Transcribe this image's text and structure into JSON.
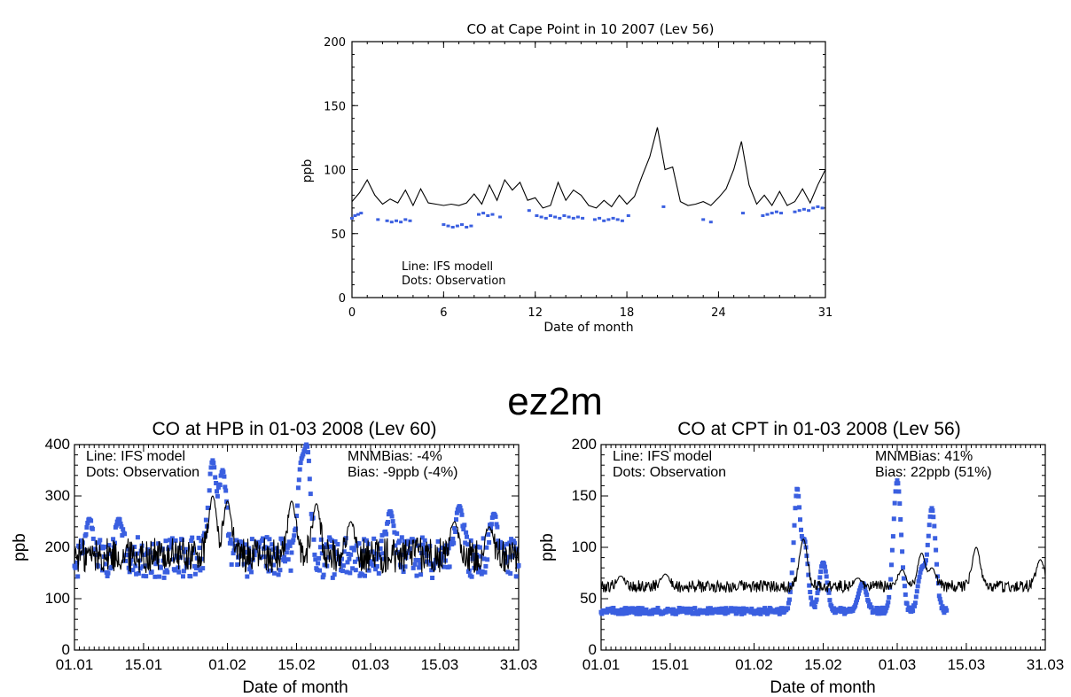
{
  "banner": "ez2m",
  "colors": {
    "model": "#000000",
    "observation": "#3a5fe0",
    "background": "#ffffff"
  },
  "chart_data": [
    {
      "type": "line",
      "title": "CO at Cape Point in 10 2007 (Lev 56)",
      "xlabel": "Date of month",
      "ylabel": "ppb",
      "xlim": [
        0,
        31
      ],
      "ylim": [
        0,
        200
      ],
      "x_ticks": [
        0,
        6,
        12,
        18,
        24,
        31
      ],
      "x_tick_labels": [
        "0",
        "6",
        "12",
        "18",
        "24",
        "31"
      ],
      "y_ticks": [
        0,
        50,
        100,
        150,
        200
      ],
      "y_tick_labels": [
        "0",
        "50",
        "100",
        "150",
        "200"
      ],
      "annotations": [
        "Line: IFS modell",
        "Dots: Observation"
      ],
      "series": [
        {
          "style": "line",
          "x": [
            0,
            0.5,
            1,
            1.5,
            2,
            2.5,
            3,
            3.5,
            4,
            4.5,
            5,
            5.5,
            6,
            6.5,
            7,
            7.5,
            8,
            8.5,
            9,
            9.5,
            10,
            10.5,
            11,
            11.5,
            12,
            12.5,
            13,
            13.5,
            14,
            14.5,
            15,
            15.5,
            16,
            16.5,
            17,
            17.5,
            18,
            18.5,
            19,
            19.5,
            20,
            20.5,
            21,
            21.5,
            22,
            22.5,
            23,
            23.5,
            24,
            24.5,
            25,
            25.5,
            26,
            26.5,
            27,
            27.5,
            28,
            28.5,
            29,
            29.5,
            30,
            30.5,
            31
          ],
          "y": [
            75,
            82,
            92,
            80,
            73,
            77,
            74,
            84,
            72,
            85,
            74,
            73,
            72,
            73,
            72,
            74,
            81,
            73,
            88,
            76,
            92,
            84,
            90,
            76,
            78,
            70,
            72,
            90,
            76,
            84,
            80,
            72,
            70,
            76,
            71,
            80,
            73,
            79,
            95,
            110,
            133,
            100,
            102,
            75,
            72,
            73,
            75,
            72,
            78,
            85,
            100,
            122,
            88,
            73,
            80,
            72,
            83,
            72,
            75,
            85,
            74,
            88,
            100
          ]
        },
        {
          "style": "dots",
          "segments": [
            {
              "x": [
                0.0,
                0.2,
                0.4,
                0.6
              ],
              "y": [
                62,
                64,
                65,
                66
              ]
            },
            {
              "x": [
                1.7
              ],
              "y": [
                61
              ]
            },
            {
              "x": [
                2.3,
                2.6,
                2.9,
                3.2,
                3.5,
                3.8
              ],
              "y": [
                60,
                59,
                60,
                59,
                61,
                60
              ]
            },
            {
              "x": [
                6.0,
                6.3,
                6.6,
                6.9,
                7.2,
                7.5,
                7.8
              ],
              "y": [
                57,
                56,
                55,
                56,
                57,
                55,
                56
              ]
            },
            {
              "x": [
                8.3,
                8.6,
                8.9,
                9.2
              ],
              "y": [
                65,
                66,
                64,
                65
              ]
            },
            {
              "x": [
                9.7
              ],
              "y": [
                63
              ]
            },
            {
              "x": [
                11.6
              ],
              "y": [
                68
              ]
            },
            {
              "x": [
                12.1,
                12.4,
                12.7,
                13.0,
                13.3,
                13.6,
                13.9,
                14.2,
                14.5,
                14.8,
                15.1
              ],
              "y": [
                64,
                63,
                62,
                64,
                63,
                62,
                64,
                63,
                62,
                63,
                62
              ]
            },
            {
              "x": [
                15.9,
                16.2,
                16.5,
                16.8,
                17.1,
                17.4,
                17.7
              ],
              "y": [
                61,
                62,
                60,
                61,
                62,
                61,
                60
              ]
            },
            {
              "x": [
                18.1
              ],
              "y": [
                64
              ]
            },
            {
              "x": [
                20.4
              ],
              "y": [
                71
              ]
            },
            {
              "x": [
                23.0,
                23.5
              ],
              "y": [
                61,
                59
              ]
            },
            {
              "x": [
                25.6
              ],
              "y": [
                66
              ]
            },
            {
              "x": [
                26.9,
                27.2,
                27.5,
                27.8,
                28.1
              ],
              "y": [
                64,
                65,
                66,
                67,
                66
              ]
            },
            {
              "x": [
                29.0,
                29.3,
                29.6,
                29.9,
                30.2,
                30.5,
                30.8
              ],
              "y": [
                67,
                68,
                69,
                68,
                70,
                71,
                70
              ]
            }
          ]
        }
      ]
    },
    {
      "type": "line",
      "title": "CO at HPB in 01-03 2008 (Lev 60)",
      "xlabel": "Date of month",
      "ylabel": "ppb",
      "xlim": [
        0,
        90
      ],
      "ylim": [
        0,
        400
      ],
      "x_tick_labels": [
        "01.01",
        "15.01",
        "01.02",
        "15.02",
        "01.03",
        "15.03",
        "31.03"
      ],
      "x_ticks_day_index": [
        0,
        14,
        31,
        45,
        60,
        74,
        90
      ],
      "y_ticks": [
        0,
        100,
        200,
        300,
        400
      ],
      "y_tick_labels": [
        "0",
        "100",
        "200",
        "300",
        "400"
      ],
      "annotations": [
        "Line: IFS model",
        "Dots: Observation",
        "MNMBias: -4%",
        "Bias: -9ppb (-4%)"
      ],
      "model_profile": {
        "base": 185,
        "noise": 35,
        "peaks": [
          [
            28,
            300
          ],
          [
            31,
            290
          ],
          [
            44,
            290
          ],
          [
            49,
            285
          ],
          [
            56,
            250
          ],
          [
            77,
            250
          ],
          [
            84,
            240
          ]
        ]
      },
      "obs_profile": {
        "base": 180,
        "noise": 40,
        "peaks": [
          [
            3,
            255
          ],
          [
            9,
            255
          ],
          [
            28,
            370
          ],
          [
            30,
            350
          ],
          [
            46,
            350
          ],
          [
            47,
            400
          ],
          [
            64,
            270
          ],
          [
            78,
            280
          ],
          [
            85,
            265
          ]
        ]
      }
    },
    {
      "type": "line",
      "title": "CO at CPT in 01-03 2008 (Lev 56)",
      "xlabel": "Date of month",
      "ylabel": "ppb",
      "xlim": [
        0,
        90
      ],
      "ylim": [
        0,
        200
      ],
      "x_tick_labels": [
        "01.01",
        "15.01",
        "01.02",
        "15.02",
        "01.03",
        "15.03",
        "31.03"
      ],
      "x_ticks_day_index": [
        0,
        14,
        31,
        45,
        60,
        74,
        90
      ],
      "y_ticks": [
        0,
        50,
        100,
        150,
        200
      ],
      "y_tick_labels": [
        "0",
        "50",
        "100",
        "150",
        "200"
      ],
      "annotations": [
        "Line: IFS model",
        "Dots: Observation",
        "MNMBias: 41%",
        "Bias: 22ppb (51%)"
      ],
      "model_profile": {
        "base": 62,
        "noise": 6,
        "peaks": [
          [
            4,
            72
          ],
          [
            13,
            74
          ],
          [
            41,
            108
          ],
          [
            52,
            70
          ],
          [
            61,
            78
          ],
          [
            65,
            95
          ],
          [
            67,
            80
          ],
          [
            76,
            100
          ],
          [
            89,
            88
          ]
        ]
      },
      "obs_profile": {
        "base": 38,
        "noise": 3,
        "end_day": 70,
        "peaks": [
          [
            40,
            185
          ],
          [
            41,
            108
          ],
          [
            45,
            85
          ],
          [
            53,
            65
          ],
          [
            60,
            165
          ],
          [
            65,
            78
          ],
          [
            67,
            138
          ]
        ]
      }
    }
  ]
}
